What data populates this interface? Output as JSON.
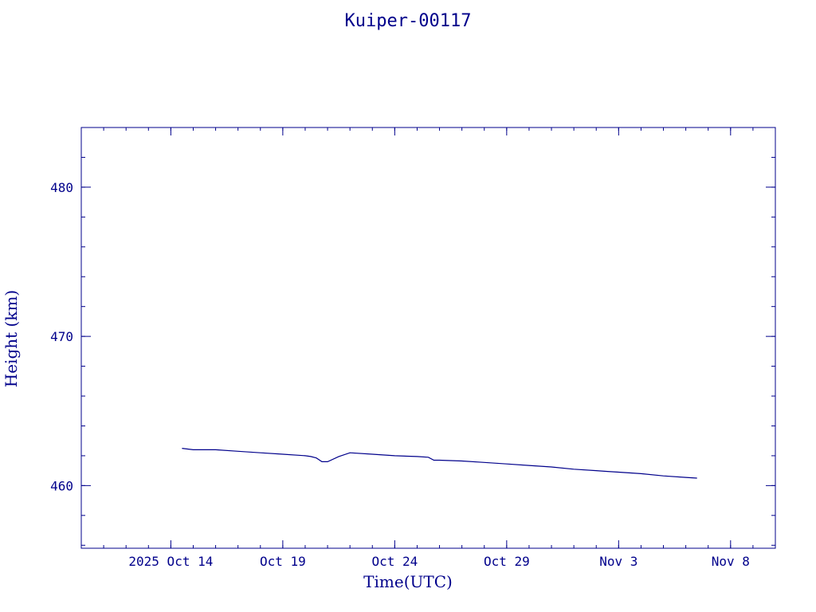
{
  "chart_data": {
    "type": "line",
    "title": "Kuiper-00117",
    "xlabel": "Time(UTC)",
    "ylabel": "Height (km)",
    "x_axis": {
      "start": "2025-10-10",
      "end": "2025-11-10",
      "major_ticks": [
        {
          "date": "2025-10-14",
          "label": "2025 Oct 14"
        },
        {
          "date": "2025-10-19",
          "label": "Oct 19"
        },
        {
          "date": "2025-10-24",
          "label": "Oct 24"
        },
        {
          "date": "2025-10-29",
          "label": "Oct 29"
        },
        {
          "date": "2025-11-03",
          "label": "Nov  3"
        },
        {
          "date": "2025-11-08",
          "label": "Nov  8"
        }
      ]
    },
    "y_axis": {
      "ylim": [
        455.8,
        484.0
      ],
      "major_ticks": [
        460,
        470,
        480
      ],
      "minor_step": 2
    },
    "grid": false,
    "colors": {
      "line": "#00008b",
      "axis": "#00008b",
      "text": "#00008b"
    },
    "series": [
      {
        "points": [
          [
            "2025-10-14 12:00",
            462.5
          ],
          [
            "2025-10-15 00:00",
            462.4
          ],
          [
            "2025-10-16 00:00",
            462.4
          ],
          [
            "2025-10-17 00:00",
            462.3
          ],
          [
            "2025-10-18 00:00",
            462.2
          ],
          [
            "2025-10-19 00:00",
            462.1
          ],
          [
            "2025-10-20 00:00",
            462.0
          ],
          [
            "2025-10-20 06:00",
            461.95
          ],
          [
            "2025-10-20 12:00",
            461.85
          ],
          [
            "2025-10-20 18:00",
            461.6
          ],
          [
            "2025-10-21 00:00",
            461.6
          ],
          [
            "2025-10-21 12:00",
            461.95
          ],
          [
            "2025-10-22 00:00",
            462.2
          ],
          [
            "2025-10-23 00:00",
            462.1
          ],
          [
            "2025-10-24 00:00",
            462.0
          ],
          [
            "2025-10-25 00:00",
            461.95
          ],
          [
            "2025-10-25 12:00",
            461.9
          ],
          [
            "2025-10-25 18:00",
            461.7
          ],
          [
            "2025-10-26 00:00",
            461.7
          ],
          [
            "2025-10-27 00:00",
            461.65
          ],
          [
            "2025-10-28 00:00",
            461.55
          ],
          [
            "2025-10-29 00:00",
            461.45
          ],
          [
            "2025-10-30 00:00",
            461.35
          ],
          [
            "2025-10-31 00:00",
            461.25
          ],
          [
            "2025-11-01 00:00",
            461.1
          ],
          [
            "2025-11-02 00:00",
            461.0
          ],
          [
            "2025-11-02 12:00",
            460.95
          ],
          [
            "2025-11-03 00:00",
            460.9
          ],
          [
            "2025-11-04 00:00",
            460.8
          ],
          [
            "2025-11-05 00:00",
            460.65
          ],
          [
            "2025-11-06 00:00",
            460.55
          ],
          [
            "2025-11-06 12:00",
            460.5
          ]
        ]
      }
    ]
  }
}
